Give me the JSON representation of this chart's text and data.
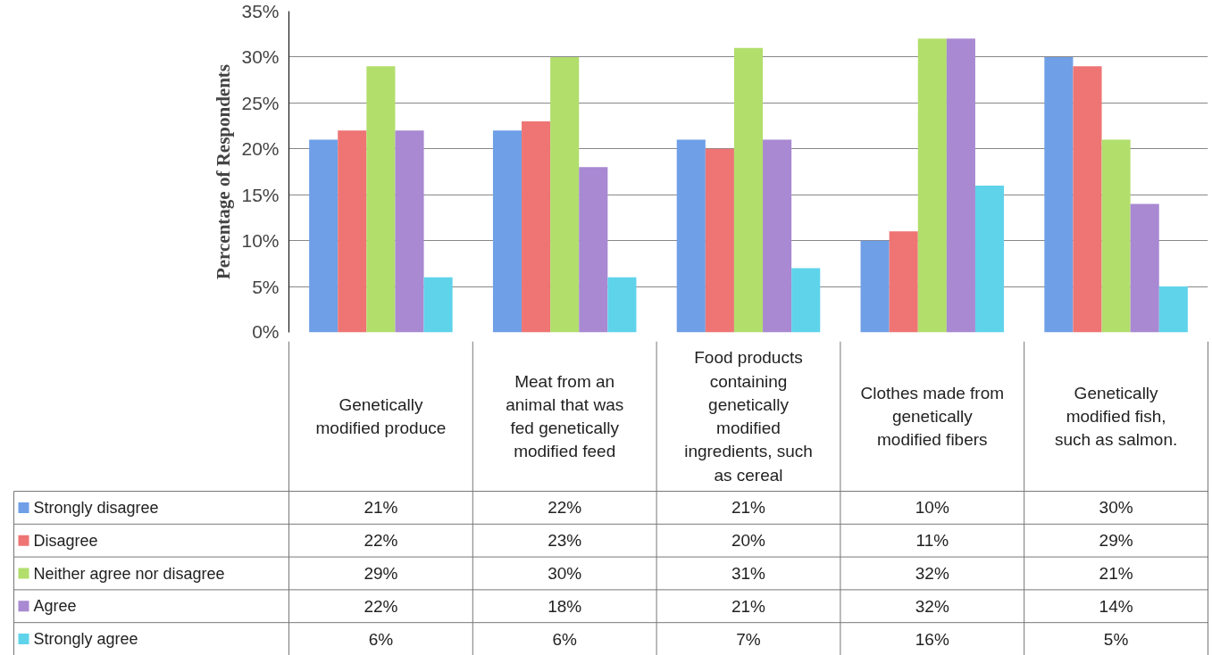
{
  "chart_data": {
    "type": "bar",
    "ylabel": "Percentage of Respondents",
    "categories": [
      "Genetically modified produce",
      "Meat from an animal that was fed genetically modified feed",
      "Food products containing genetically modified ingredients, such as cereal",
      "Clothes made from genetically modified fibers",
      "Genetically modified fish, such as salmon."
    ],
    "series": [
      {
        "name": "Strongly disagree",
        "color": "#6f9fe6",
        "values": [
          21,
          22,
          21,
          10,
          30
        ],
        "value_labels": [
          "21%",
          "22%",
          "21%",
          "10%",
          "30%"
        ]
      },
      {
        "name": "Disagree",
        "color": "#ee7574",
        "values": [
          22,
          23,
          20,
          11,
          29
        ],
        "value_labels": [
          "22%",
          "23%",
          "20%",
          "11%",
          "29%"
        ]
      },
      {
        "name": "Neither agree nor disagree",
        "color": "#b2de6c",
        "values": [
          29,
          30,
          31,
          32,
          21
        ],
        "value_labels": [
          "29%",
          "30%",
          "31%",
          "32%",
          "21%"
        ]
      },
      {
        "name": " Agree",
        "color": "#a889d2",
        "values": [
          22,
          18,
          21,
          32,
          14
        ],
        "value_labels": [
          "22%",
          "18%",
          "21%",
          "32%",
          "14%"
        ]
      },
      {
        "name": "Strongly agree",
        "color": "#5fd3ea",
        "values": [
          6,
          6,
          7,
          16,
          5
        ],
        "value_labels": [
          "6%",
          "6%",
          "7%",
          "16%",
          "5%"
        ]
      }
    ],
    "ylim": [
      0,
      35
    ],
    "yticks": [
      {
        "value": 0,
        "label": "0%"
      },
      {
        "value": 5,
        "label": "5%"
      },
      {
        "value": 10,
        "label": "10%"
      },
      {
        "value": 15,
        "label": "15%"
      },
      {
        "value": 20,
        "label": "20%"
      },
      {
        "value": 25,
        "label": "25%"
      },
      {
        "value": 30,
        "label": "30%"
      },
      {
        "value": 35,
        "label": "35%"
      }
    ],
    "grid": "y",
    "legend": "bottom"
  }
}
